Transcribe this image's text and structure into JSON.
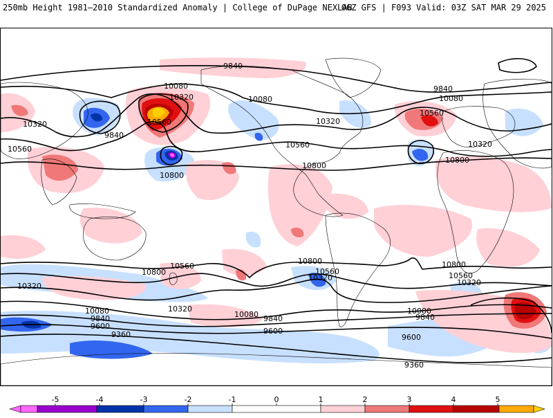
{
  "header": {
    "title": "250mb Height 1981–2010 Standardized Anomaly | College of DuPage NEXLAB",
    "run_info": "06Z GFS | F093 Valid: 03Z SAT MAR 29 2025"
  },
  "colors": {
    "neg5": "#ff66ff",
    "neg4": "#9900cc",
    "neg3": "#0033aa",
    "neg2": "#3366ee",
    "neg1": "#c8e0ff",
    "zero": "#ffffff",
    "pos1": "#ffd0d6",
    "pos2": "#f07878",
    "pos3": "#e01010",
    "pos4": "#b80000",
    "pos5": "#ffaa00",
    "pos6": "#ffd000"
  },
  "colorbar": {
    "ticks": [
      "-5",
      "-4",
      "-3",
      "-2",
      "-1",
      "0",
      "1",
      "2",
      "3",
      "4",
      "5"
    ]
  },
  "contour_labels": [
    {
      "id": "c9840-n",
      "text": "9840"
    },
    {
      "id": "c10080-npac",
      "text": "10080"
    },
    {
      "id": "c10320-npac",
      "text": "10320"
    },
    {
      "id": "c10560-npac",
      "text": "10560"
    },
    {
      "id": "c9840-asia",
      "text": "9840"
    },
    {
      "id": "c10320-asia",
      "text": "10320"
    },
    {
      "id": "c10560-asia",
      "text": "10560"
    },
    {
      "id": "c10800-pac",
      "text": "10800"
    },
    {
      "id": "c10080-can",
      "text": "10080"
    },
    {
      "id": "c10320-us",
      "text": "10320"
    },
    {
      "id": "c10560-us",
      "text": "10560"
    },
    {
      "id": "c10800-gulf",
      "text": "10800"
    },
    {
      "id": "c9840-eu",
      "text": "9840"
    },
    {
      "id": "c10080-eu",
      "text": "10080"
    },
    {
      "id": "c10560-atl",
      "text": "10560"
    },
    {
      "id": "c10320-eu",
      "text": "10320"
    },
    {
      "id": "c10800-afr",
      "text": "10800"
    },
    {
      "id": "c10800-spac",
      "text": "10800"
    },
    {
      "id": "c10560-spac",
      "text": "10560"
    },
    {
      "id": "c10320-sw",
      "text": "10320"
    },
    {
      "id": "c10080-sw",
      "text": "10080"
    },
    {
      "id": "c9840-sw",
      "text": "9840"
    },
    {
      "id": "c9600-sw",
      "text": "9600"
    },
    {
      "id": "c9360-sw",
      "text": "9360"
    },
    {
      "id": "c10320-saus",
      "text": "10320"
    },
    {
      "id": "c10080-saus",
      "text": "10080"
    },
    {
      "id": "c9840-saus",
      "text": "9840"
    },
    {
      "id": "c9600-saus",
      "text": "9600"
    },
    {
      "id": "c10560-sam",
      "text": "10560"
    },
    {
      "id": "c10320-sam",
      "text": "10320"
    },
    {
      "id": "c10800-satl",
      "text": "10800"
    },
    {
      "id": "c10800-sind",
      "text": "10800"
    },
    {
      "id": "c10560-sind",
      "text": "10560"
    },
    {
      "id": "c10320-sind",
      "text": "10320"
    },
    {
      "id": "c10080-satl",
      "text": "10080"
    },
    {
      "id": "c9840-satl",
      "text": "9840"
    },
    {
      "id": "c9600-satl",
      "text": "9600"
    },
    {
      "id": "c9360-s",
      "text": "9360"
    }
  ]
}
